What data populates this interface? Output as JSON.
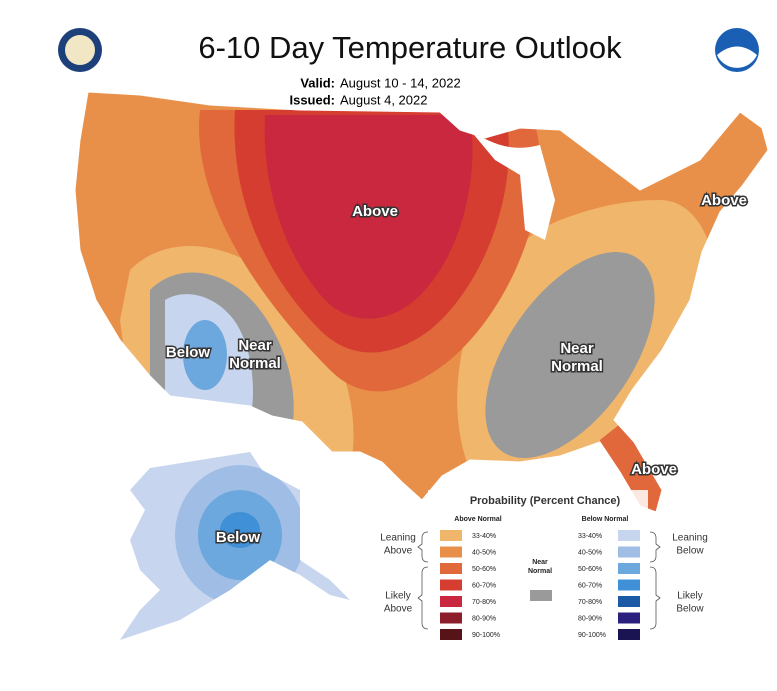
{
  "header": {
    "title": "6-10 Day Temperature Outlook",
    "valid_label": "Valid:",
    "valid": "August 10 - 14, 2022",
    "issued_label": "Issued:",
    "issued": "August 4, 2022"
  },
  "map_labels": [
    [
      "Above"
    ],
    [
      "Below"
    ],
    [
      "Near",
      "Normal"
    ],
    [
      "Near",
      "Normal"
    ],
    [
      "Above"
    ],
    [
      "Above"
    ],
    [
      "Below"
    ]
  ],
  "legend": {
    "title": "Probability (Percent Chance)",
    "above_header": "Above Normal",
    "below_header": "Below Normal",
    "near_label": [
      "Near",
      "Normal"
    ],
    "near_color": "#9a9a9a",
    "leaning_above": [
      "Leaning",
      "Above"
    ],
    "likely_above": [
      "Likely",
      "Above"
    ],
    "leaning_below": [
      "Leaning",
      "Below"
    ],
    "likely_below": [
      "Likely",
      "Below"
    ],
    "above_bins": [
      {
        "label": "33-40%",
        "color": "#f0b66c"
      },
      {
        "label": "40-50%",
        "color": "#e8904a"
      },
      {
        "label": "50-60%",
        "color": "#e0683a"
      },
      {
        "label": "60-70%",
        "color": "#d43d2f"
      },
      {
        "label": "70-80%",
        "color": "#c9283f"
      },
      {
        "label": "80-90%",
        "color": "#8c1d2b"
      },
      {
        "label": "90-100%",
        "color": "#561418"
      }
    ],
    "below_bins": [
      {
        "label": "33-40%",
        "color": "#c8d5ee"
      },
      {
        "label": "40-50%",
        "color": "#9fbde5"
      },
      {
        "label": "50-60%",
        "color": "#6ca7de"
      },
      {
        "label": "60-70%",
        "color": "#3f90d6"
      },
      {
        "label": "70-80%",
        "color": "#1c5aa6"
      },
      {
        "label": "80-90%",
        "color": "#2b207d"
      },
      {
        "label": "90-100%",
        "color": "#1a1452"
      }
    ]
  }
}
